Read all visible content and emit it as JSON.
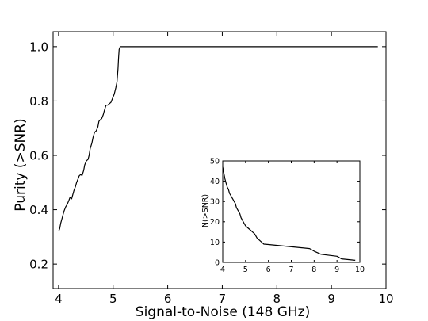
{
  "chart_data": [
    {
      "type": "line",
      "title": "",
      "xlabel": "Signal-to-Noise (148 GHz)",
      "ylabel": "Purity (>SNR)",
      "xlim": [
        3.9,
        10.0
      ],
      "ylim": [
        0.11,
        1.055
      ],
      "xticks": [
        4,
        5,
        6,
        7,
        8,
        9,
        10
      ],
      "yticks": [
        0.2,
        0.4,
        0.6,
        0.8,
        1.0
      ],
      "ytick_labels": [
        "0.2",
        "0.4",
        "0.6",
        "0.8",
        "1.0"
      ],
      "grid": false,
      "series": [
        {
          "x": [
            4.0,
            4.02,
            4.04,
            4.06,
            4.08,
            4.1,
            4.13,
            4.16,
            4.19,
            4.21,
            4.24,
            4.26,
            4.28,
            4.31,
            4.33,
            4.36,
            4.38,
            4.41,
            4.43,
            4.46,
            4.48,
            4.51,
            4.54,
            4.56,
            4.58,
            4.61,
            4.63,
            4.66,
            4.69,
            4.72,
            4.74,
            4.76,
            4.79,
            4.82,
            4.84,
            4.87,
            4.9,
            4.93,
            4.96,
            4.99,
            5.02,
            5.05,
            5.07,
            5.09,
            5.1,
            5.11,
            5.13,
            9.85
          ],
          "y": [
            0.32,
            0.33,
            0.35,
            0.365,
            0.38,
            0.395,
            0.41,
            0.42,
            0.435,
            0.445,
            0.44,
            0.455,
            0.47,
            0.485,
            0.5,
            0.515,
            0.525,
            0.53,
            0.525,
            0.545,
            0.565,
            0.58,
            0.585,
            0.6,
            0.625,
            0.645,
            0.665,
            0.685,
            0.69,
            0.705,
            0.725,
            0.73,
            0.735,
            0.75,
            0.765,
            0.785,
            0.785,
            0.79,
            0.795,
            0.81,
            0.825,
            0.85,
            0.87,
            0.92,
            0.96,
            0.99,
            1.0,
            1.0
          ]
        }
      ]
    },
    {
      "type": "line",
      "title": "",
      "xlabel": "",
      "ylabel": "N(>SNR)",
      "xlim": [
        4,
        10
      ],
      "ylim": [
        0,
        50
      ],
      "xticks": [
        4,
        5,
        6,
        7,
        8,
        9,
        10
      ],
      "yticks": [
        0,
        10,
        20,
        30,
        40,
        50
      ],
      "grid": false,
      "series": [
        {
          "x": [
            4.0,
            4.05,
            4.1,
            4.15,
            4.2,
            4.25,
            4.3,
            4.35,
            4.4,
            4.45,
            4.5,
            4.55,
            4.6,
            4.65,
            4.7,
            4.75,
            4.8,
            4.9,
            5.0,
            5.1,
            5.2,
            5.3,
            5.4,
            5.5,
            5.6,
            5.7,
            5.8,
            6.0,
            7.8,
            8.0,
            8.3,
            9.0,
            9.2,
            9.8
          ],
          "y": [
            47,
            44,
            41,
            39,
            37,
            36,
            34,
            33,
            32,
            31,
            30,
            29,
            27,
            26,
            25,
            24,
            22,
            20,
            18,
            17,
            16,
            15,
            14,
            12,
            11,
            10,
            9,
            8.8,
            6.8,
            5.5,
            4,
            3,
            1.7,
            1
          ]
        }
      ]
    }
  ]
}
